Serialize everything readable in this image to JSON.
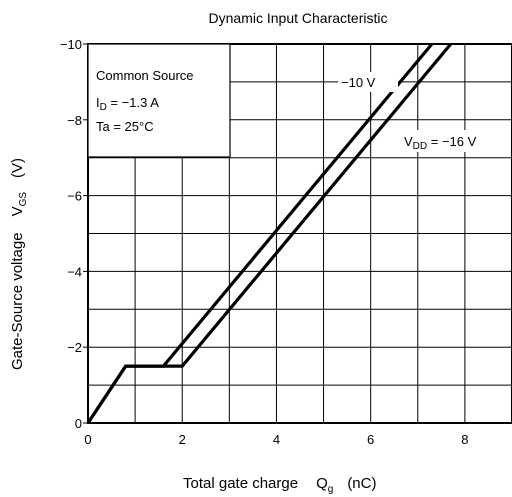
{
  "chart_data": {
    "type": "line",
    "title": "Dynamic Input Characteristic",
    "xlabel": "Total gate charge",
    "xlabel_symbol": "Q",
    "xlabel_symbol_sub": "g",
    "xlabel_unit": "(nC)",
    "ylabel": "Gate-Source voltage",
    "ylabel_symbol": "V",
    "ylabel_symbol_sub": "GS",
    "ylabel_unit": "(V)",
    "xlim": [
      0,
      9
    ],
    "ylim": [
      0,
      -10
    ],
    "x_ticks": [
      "0",
      "2",
      "4",
      "6",
      "8"
    ],
    "y_ticks": [
      "0",
      "−2",
      "−4",
      "−6",
      "−8",
      "−10"
    ],
    "grid": true,
    "conditions": {
      "line1": "Common Source",
      "line2": "I",
      "line2_sub": "D",
      "line2_rest": " = −1.3 A",
      "line3": "Ta = 25°C"
    },
    "series": [
      {
        "name": "−10 V",
        "x": [
          0,
          0.8,
          1.6,
          7.3
        ],
        "y": [
          0,
          -1.5,
          -1.5,
          -10
        ]
      },
      {
        "name_prefix": "V",
        "name_sub": "DD",
        "name_rest": " = −16 V",
        "x": [
          0,
          0.8,
          2.0,
          7.7
        ],
        "y": [
          0,
          -1.5,
          -1.5,
          -10
        ]
      }
    ],
    "line_color": "#000000"
  }
}
